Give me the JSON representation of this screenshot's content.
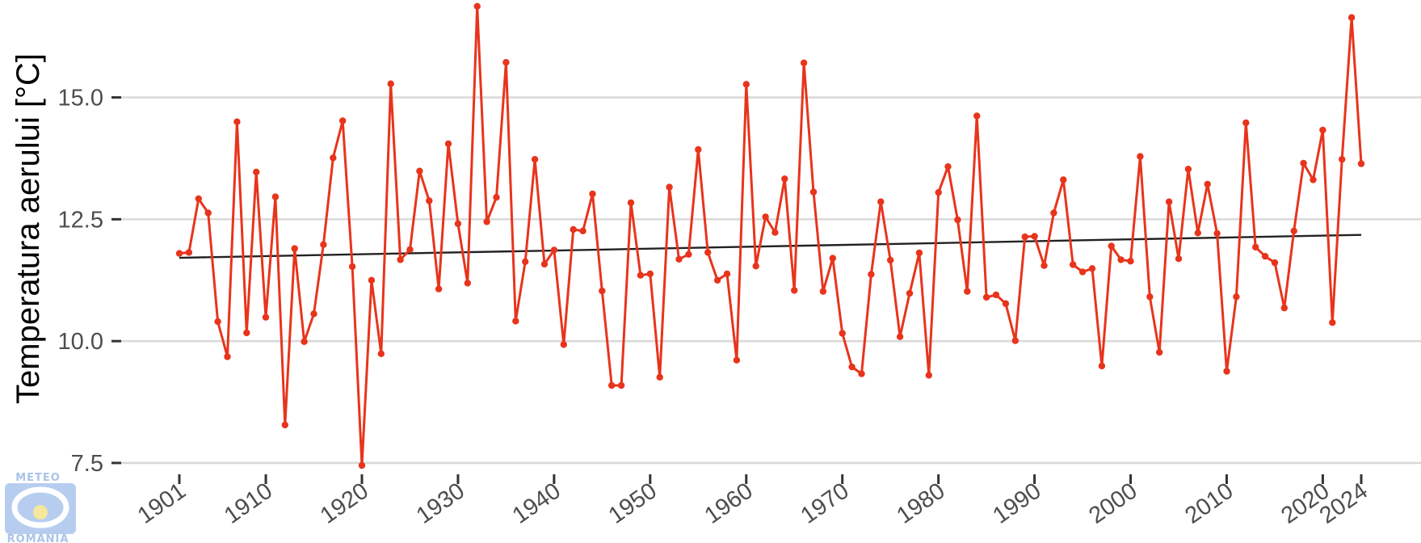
{
  "chart_data": {
    "type": "line",
    "title": "",
    "xlabel": "",
    "ylabel": "Temperatura aerului [°C]",
    "xlim": [
      1901,
      2024
    ],
    "ylim": [
      7.3,
      16.9
    ],
    "grid": "horizontal",
    "x_ticks": [
      "1901",
      "1910",
      "1920",
      "1930",
      "1940",
      "1950",
      "1960",
      "1970",
      "1980",
      "1990",
      "2000",
      "2010",
      "2020",
      "2024"
    ],
    "y_ticks": [
      "7.5",
      "10.0",
      "12.5",
      "15.0"
    ],
    "colors": {
      "series": "#e8341c",
      "trend": "#222222",
      "grid": "#d9d9d9"
    },
    "series": [
      {
        "x": [
          1901,
          1902,
          1903,
          1904,
          1905,
          1906,
          1907,
          1908,
          1909,
          1910,
          1911,
          1912,
          1913,
          1914,
          1915,
          1916,
          1917,
          1918,
          1919,
          1920,
          1921,
          1922,
          1923,
          1924,
          1925,
          1926,
          1927,
          1928,
          1929,
          1930,
          1931,
          1932,
          1933,
          1934,
          1935,
          1936,
          1937,
          1938,
          1939,
          1940,
          1941,
          1942,
          1943,
          1944,
          1945,
          1946,
          1947,
          1948,
          1949,
          1950,
          1951,
          1952,
          1953,
          1954,
          1955,
          1956,
          1957,
          1958,
          1959,
          1960,
          1961,
          1962,
          1963,
          1964,
          1965,
          1966,
          1967,
          1968,
          1969,
          1970,
          1971,
          1972,
          1973,
          1974,
          1975,
          1976,
          1977,
          1978,
          1979,
          1980,
          1981,
          1982,
          1983,
          1984,
          1985,
          1986,
          1987,
          1988,
          1989,
          1990,
          1991,
          1992,
          1993,
          1994,
          1995,
          1996,
          1997,
          1998,
          1999,
          2000,
          2001,
          2002,
          2003,
          2004,
          2005,
          2006,
          2007,
          2008,
          2009,
          2010,
          2011,
          2012,
          2013,
          2014,
          2015,
          2016,
          2017,
          2018,
          2019,
          2020,
          2021,
          2022,
          2023,
          2024
        ],
        "values": [
          11.8,
          11.82,
          12.92,
          12.63,
          10.4,
          9.68,
          14.5,
          10.17,
          13.47,
          10.49,
          12.96,
          8.28,
          11.9,
          9.99,
          10.56,
          11.98,
          13.76,
          14.52,
          11.53,
          7.45,
          11.25,
          9.74,
          15.28,
          11.67,
          11.88,
          13.49,
          12.88,
          11.07,
          14.05,
          12.41,
          11.19,
          16.87,
          12.45,
          12.95,
          15.72,
          10.41,
          11.63,
          13.73,
          11.58,
          11.87,
          9.93,
          12.29,
          12.26,
          13.02,
          11.03,
          9.09,
          9.09,
          12.84,
          11.35,
          11.38,
          9.26,
          13.16,
          11.68,
          11.78,
          13.93,
          11.82,
          11.25,
          11.38,
          9.61,
          15.27,
          11.54,
          12.55,
          12.23,
          13.33,
          11.04,
          15.71,
          13.06,
          11.02,
          11.7,
          10.16,
          9.47,
          9.33,
          11.37,
          12.86,
          11.66,
          10.09,
          10.98,
          11.81,
          9.3,
          13.05,
          13.58,
          12.49,
          11.02,
          14.62,
          10.9,
          10.95,
          10.77,
          10.01,
          12.14,
          12.15,
          11.55,
          12.63,
          13.31,
          11.57,
          11.42,
          11.49,
          9.49,
          11.95,
          11.67,
          11.64,
          13.79,
          10.91,
          9.77,
          12.86,
          11.69,
          13.53,
          12.22,
          13.22,
          12.21,
          9.38,
          10.91,
          14.48,
          11.93,
          11.74,
          11.61,
          10.68,
          12.26,
          13.65,
          13.31,
          14.33,
          10.38,
          13.73,
          16.64,
          13.64
        ]
      }
    ],
    "trend_line": {
      "x": [
        1901,
        2024
      ],
      "y": [
        11.71,
        12.18
      ]
    }
  },
  "logo": {
    "top_text": "METEO",
    "bottom_text": "ROMANIA"
  }
}
